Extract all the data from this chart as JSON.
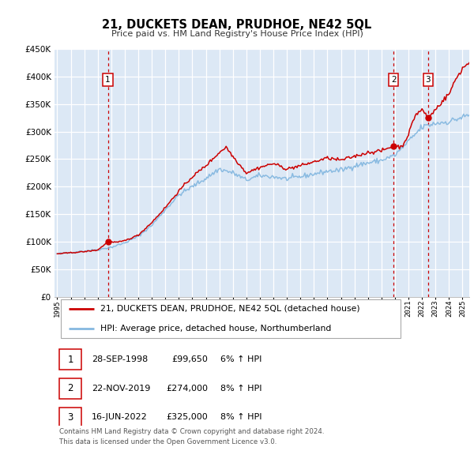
{
  "title": "21, DUCKETS DEAN, PRUDHOE, NE42 5QL",
  "subtitle": "Price paid vs. HM Land Registry's House Price Index (HPI)",
  "bg_color": "#dce8f5",
  "legend_line1": "21, DUCKETS DEAN, PRUDHOE, NE42 5QL (detached house)",
  "legend_line2": "HPI: Average price, detached house, Northumberland",
  "footer": "Contains HM Land Registry data © Crown copyright and database right 2024.\nThis data is licensed under the Open Government Licence v3.0.",
  "property_color": "#cc0000",
  "hpi_color": "#85b8e0",
  "vline_color": "#cc0000",
  "grid_color": "#ffffff",
  "transactions": [
    {
      "id": 1,
      "date_x": 1998.748,
      "price": 99650,
      "label": "28-SEP-1998",
      "price_str": "£99,650",
      "pct_str": "6% ↑ HPI"
    },
    {
      "id": 2,
      "date_x": 2019.896,
      "price": 274000,
      "label": "22-NOV-2019",
      "price_str": "£274,000",
      "pct_str": "8% ↑ HPI"
    },
    {
      "id": 3,
      "date_x": 2022.457,
      "price": 325000,
      "label": "16-JUN-2022",
      "price_str": "£325,000",
      "pct_str": "8% ↑ HPI"
    }
  ],
  "ylim": [
    0,
    450000
  ],
  "yticks": [
    0,
    50000,
    100000,
    150000,
    200000,
    250000,
    300000,
    350000,
    400000,
    450000
  ],
  "ytick_labels": [
    "£0",
    "£50K",
    "£100K",
    "£150K",
    "£200K",
    "£250K",
    "£300K",
    "£350K",
    "£400K",
    "£450K"
  ],
  "xmin": 1994.8,
  "xmax": 2025.5,
  "xticks": [
    1995,
    1996,
    1997,
    1998,
    1999,
    2000,
    2001,
    2002,
    2003,
    2004,
    2005,
    2006,
    2007,
    2008,
    2009,
    2010,
    2011,
    2012,
    2013,
    2014,
    2015,
    2016,
    2017,
    2018,
    2019,
    2020,
    2021,
    2022,
    2023,
    2024,
    2025
  ]
}
